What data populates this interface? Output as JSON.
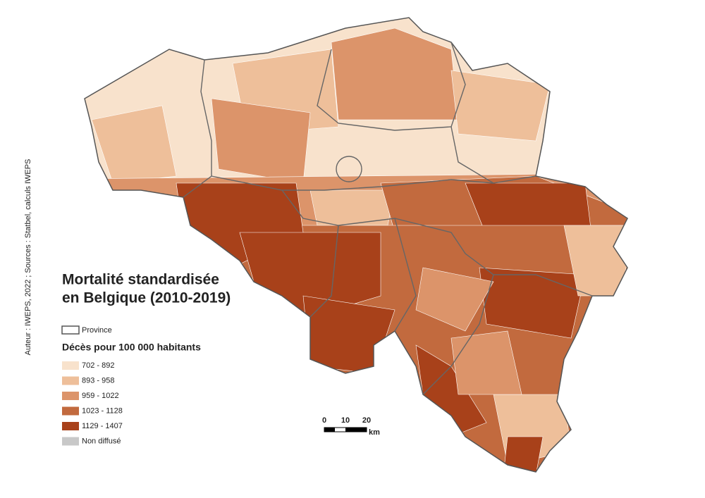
{
  "title": [
    "Mortalité standardisée",
    "en Belgique (2010-2019)"
  ],
  "credit": "Auteur : IWEPS, 2022 ; Sources : Statbel, calculs IWEPS",
  "legend": {
    "province": "Province",
    "heading": "Décès pour 100 000 habitants",
    "classes": [
      {
        "label": "702 - 892",
        "color": "#f8e2cc"
      },
      {
        "label": "893 - 958",
        "color": "#eebf9a"
      },
      {
        "label": "959 - 1022",
        "color": "#dc946a"
      },
      {
        "label": "1023 - 1128",
        "color": "#c26a3e"
      },
      {
        "label": "1129 - 1407",
        "color": "#a8411a"
      },
      {
        "label": "Non diffusé",
        "color": "#c8c8c8"
      }
    ]
  },
  "scale_bar": {
    "ticks": [
      "0",
      "10",
      "20"
    ],
    "unit": "km"
  }
}
